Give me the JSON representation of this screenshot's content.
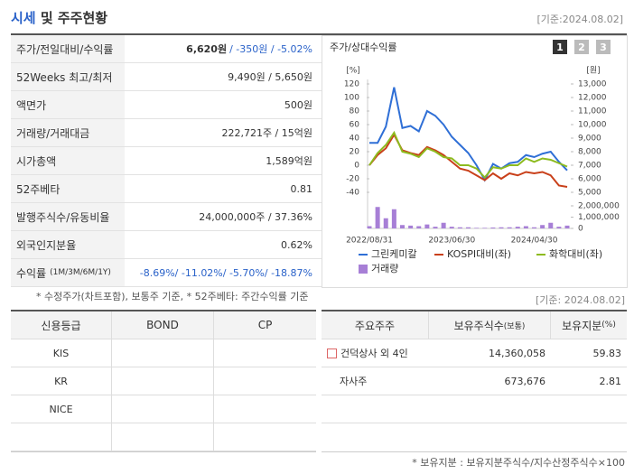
{
  "header": {
    "title_highlight": "시세",
    "title_rest": "및 주주현황",
    "date": "[기준:2024.08.02]"
  },
  "quote_table": {
    "rows": [
      {
        "label": "주가/전일대비/수익률",
        "value_strong": "6,620원",
        "value": "/ -350원 / -5.02%",
        "color": "#2a62c9"
      },
      {
        "label": "52Weeks 최고/최저",
        "value": "9,490원 / 5,650원"
      },
      {
        "label": "액면가",
        "value": "500원"
      },
      {
        "label": "거래량/거래대금",
        "value": "222,721주 / 15억원"
      },
      {
        "label": "시가총액",
        "value": "1,589억원"
      },
      {
        "label": "52주베타",
        "value": "0.81"
      },
      {
        "label": "발행주식수/유동비율",
        "value": "24,000,000주 / 37.36%"
      },
      {
        "label": "외국인지분율",
        "value": "0.62%"
      },
      {
        "label": "수익률",
        "note": "(1M/3M/6M/1Y)",
        "value": "-8.69%/ -11.02%/ -5.70%/ -18.87%",
        "color": "#2a62c9"
      }
    ]
  },
  "chart": {
    "type": "line",
    "title": "주가/상대수익률",
    "buttons": [
      "1",
      "2",
      "3"
    ],
    "y_unit": "[%]",
    "y2_unit": "[원]",
    "categories": [
      "2022/08/31",
      null,
      null,
      null,
      null,
      null,
      null,
      null,
      null,
      null,
      "2023/06/30",
      null,
      null,
      null,
      null,
      null,
      null,
      null,
      null,
      null,
      "2024/04/30",
      null,
      null,
      null,
      null
    ],
    "ylim": [
      -40,
      120
    ],
    "yticks": [
      120,
      100,
      80,
      60,
      40,
      20,
      0,
      -20,
      -40
    ],
    "y2lim": [
      5000,
      13000
    ],
    "y2ticks": [
      {
        "value": 13000,
        "label": "13,000"
      },
      {
        "value": 12000,
        "label": "12,000"
      },
      {
        "value": 11000,
        "label": "11,000"
      },
      {
        "value": 10000,
        "label": "10,000"
      },
      {
        "value": 9000,
        "label": "9,000"
      },
      {
        "value": 8000,
        "label": "8,000"
      },
      {
        "value": 7000,
        "label": "7,000"
      },
      {
        "value": 6000,
        "label": "6,000"
      },
      {
        "value": 5000,
        "label": "5,000"
      }
    ],
    "volume_lim": [
      0,
      2000000
    ],
    "volume_ticks": [
      {
        "value": 2000000,
        "label": "2,000,000"
      },
      {
        "value": 1000000,
        "label": "1,000,000"
      },
      0
    ],
    "series": [
      {
        "name": "그린케미칼",
        "color": "#2f6fd6",
        "axis": "y2",
        "values": [
          8650,
          8650,
          9850,
          12750,
          9750,
          9900,
          9500,
          11000,
          10650,
          10000,
          9100,
          8500,
          7900,
          7000,
          5900,
          7100,
          6750,
          7150,
          7250,
          7750,
          7600,
          7850,
          8000,
          7250,
          6620
        ]
      },
      {
        "name": "KOSPI대비(좌)",
        "color": "#c9401a",
        "values": [
          0,
          15,
          25,
          45,
          22,
          18,
          15,
          27,
          22,
          15,
          5,
          -5,
          -8,
          -15,
          -22,
          -12,
          -20,
          -12,
          -15,
          -10,
          -12,
          -10,
          -15,
          -30,
          -32
        ]
      },
      {
        "name": "화학대비(좌)",
        "color": "#8dbb1f",
        "values": [
          0,
          18,
          30,
          48,
          20,
          17,
          12,
          25,
          20,
          12,
          10,
          0,
          0,
          -5,
          -18,
          -3,
          -5,
          0,
          0,
          10,
          5,
          10,
          8,
          3,
          -2
        ]
      },
      {
        "name": "거래량",
        "color": "#a77fd6",
        "axis": "volume",
        "values": [
          200000,
          1900000,
          900000,
          1700000,
          300000,
          250000,
          200000,
          350000,
          150000,
          500000,
          150000,
          100000,
          100000,
          50000,
          50000,
          80000,
          100000,
          100000,
          150000,
          200000,
          100000,
          300000,
          500000,
          150000,
          250000
        ]
      }
    ]
  },
  "footnote_left": "* 수정주가(차트포함), 보통주 기준, * 52주베타: 주간수익률 기준",
  "footnote_date": "[기준: 2024.08.02]",
  "credit_table": {
    "headers": [
      "신용등급",
      "BOND",
      "CP"
    ],
    "rows": [
      "KIS",
      "KR",
      "NICE"
    ]
  },
  "holder_table": {
    "headers": [
      {
        "text": "주요주주"
      },
      {
        "text": "보유주식수",
        "note": "(보통)"
      },
      {
        "text": "보유지분",
        "note": "(%)"
      }
    ],
    "rows": [
      {
        "name": "건덕상사 외 4인",
        "shares": "14,360,058",
        "pct": 59.83,
        "expandable": true
      },
      {
        "name": "자사주",
        "shares": "673,676",
        "pct": 2.81
      }
    ]
  },
  "footnote_right": "* 보유지분 : 보유지분주식수/지수산정주식수×100"
}
